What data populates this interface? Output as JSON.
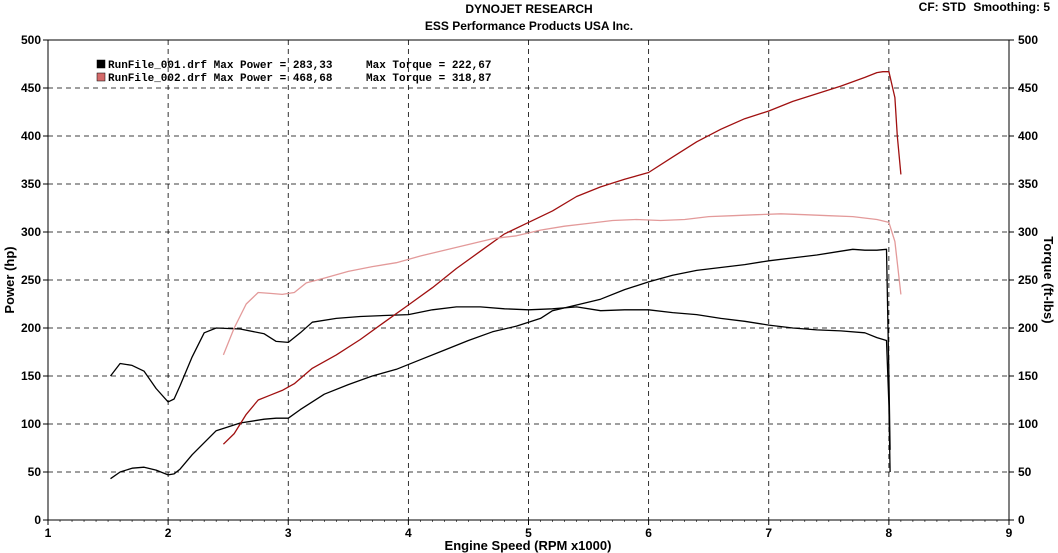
{
  "header": {
    "title": "DYNOJET RESEARCH",
    "subtitle": "ESS Performance Products USA Inc.",
    "cf": "CF: STD",
    "smoothing": "Smoothing: 5"
  },
  "chart_data": {
    "type": "line",
    "xlabel": "Engine Speed (RPM x1000)",
    "ylabel": "Power (hp)",
    "y2label": "Torque (ft-lbs)",
    "xlim": [
      1,
      9
    ],
    "ylim": [
      0,
      500
    ],
    "y2lim": [
      0,
      500
    ],
    "xticks": [
      "1",
      "2",
      "3",
      "4",
      "5",
      "6",
      "7",
      "8",
      "9"
    ],
    "yticks": [
      "0",
      "50",
      "100",
      "150",
      "200",
      "250",
      "300",
      "350",
      "400",
      "450",
      "500"
    ],
    "y2ticks": [
      "0",
      "50",
      "100",
      "150",
      "200",
      "250",
      "300",
      "350",
      "400",
      "450",
      "500"
    ],
    "grid": true,
    "legend_position": "top-left",
    "legend": [
      {
        "file": "RunFile_001.drf",
        "power_text": "Max Power = 283,33",
        "torque_text": "Max Torque = 222,67",
        "color": "#000000"
      },
      {
        "file": "RunFile_002.drf",
        "power_text": "Max Power = 468,68",
        "torque_text": "Max Torque = 318,87",
        "color": "#d46a6a"
      }
    ],
    "series": [
      {
        "color": "#000000",
        "x": [
          1.52,
          1.6,
          1.7,
          1.8,
          1.9,
          2.0,
          2.05,
          2.1,
          2.2,
          2.4,
          2.6,
          2.8,
          2.9,
          3.0,
          3.1,
          3.3,
          3.5,
          3.7,
          3.9,
          4.1,
          4.3,
          4.5,
          4.7,
          4.9,
          5.0,
          5.1,
          5.2,
          5.4,
          5.6,
          5.8,
          6.0,
          6.2,
          6.4,
          6.6,
          6.8,
          7.0,
          7.2,
          7.4,
          7.6,
          7.7,
          7.8,
          7.9,
          7.98,
          8.0,
          8.01
        ],
        "y": [
          43,
          50,
          54,
          55,
          52,
          47,
          48,
          53,
          68,
          93,
          101,
          105,
          106,
          106,
          115,
          131,
          141,
          150,
          157,
          167,
          177,
          187,
          196,
          202,
          206,
          210,
          218,
          224,
          230,
          240,
          248,
          255,
          260,
          263,
          266,
          270,
          273,
          276,
          280,
          282,
          281,
          281,
          282,
          150,
          73
        ]
      },
      {
        "color": "#000000",
        "x": [
          1.52,
          1.6,
          1.7,
          1.8,
          1.9,
          2.0,
          2.05,
          2.1,
          2.2,
          2.3,
          2.4,
          2.6,
          2.8,
          2.9,
          3.0,
          3.1,
          3.2,
          3.4,
          3.6,
          3.8,
          4.0,
          4.2,
          4.4,
          4.6,
          4.8,
          5.0,
          5.2,
          5.4,
          5.6,
          5.8,
          6.0,
          6.2,
          6.4,
          6.6,
          6.8,
          7.0,
          7.2,
          7.4,
          7.6,
          7.8,
          7.9,
          7.98,
          8.0,
          8.01
        ],
        "y": [
          150,
          163,
          161,
          155,
          137,
          123,
          126,
          140,
          170,
          195,
          200,
          199,
          194,
          186,
          185,
          195,
          206,
          210,
          212,
          213,
          214,
          219,
          222,
          222,
          220,
          219,
          220,
          222,
          218,
          219,
          219,
          216,
          214,
          210,
          207,
          203,
          200,
          198,
          197,
          195,
          190,
          187,
          120,
          50
        ]
      },
      {
        "color": "#a01010",
        "x": [
          2.46,
          2.55,
          2.65,
          2.75,
          2.85,
          2.95,
          3.05,
          3.2,
          3.4,
          3.6,
          3.8,
          4.0,
          4.2,
          4.4,
          4.6,
          4.8,
          5.0,
          5.2,
          5.4,
          5.6,
          5.8,
          6.0,
          6.2,
          6.4,
          6.6,
          6.8,
          7.0,
          7.2,
          7.4,
          7.6,
          7.8,
          7.9,
          7.95,
          8.0,
          8.05,
          8.07,
          8.1
        ],
        "y": [
          79,
          90,
          110,
          125,
          130,
          135,
          142,
          158,
          172,
          188,
          206,
          224,
          242,
          262,
          280,
          298,
          310,
          322,
          337,
          347,
          355,
          362,
          378,
          394,
          407,
          418,
          426,
          436,
          444,
          452,
          461,
          466,
          467,
          467,
          440,
          400,
          360
        ]
      },
      {
        "color": "#e39a9a",
        "x": [
          2.46,
          2.55,
          2.65,
          2.75,
          2.85,
          2.95,
          3.05,
          3.15,
          3.3,
          3.5,
          3.7,
          3.9,
          4.1,
          4.3,
          4.5,
          4.7,
          4.9,
          5.1,
          5.3,
          5.5,
          5.7,
          5.9,
          6.1,
          6.3,
          6.5,
          6.7,
          6.9,
          7.1,
          7.3,
          7.5,
          7.7,
          7.9,
          8.0,
          8.05,
          8.1
        ],
        "y": [
          172,
          200,
          225,
          237,
          236,
          235,
          237,
          247,
          252,
          259,
          264,
          268,
          275,
          281,
          287,
          293,
          296,
          302,
          306,
          309,
          312,
          313,
          312,
          313,
          316,
          317,
          318,
          319,
          318,
          317,
          316,
          313,
          310,
          290,
          235
        ]
      }
    ]
  }
}
